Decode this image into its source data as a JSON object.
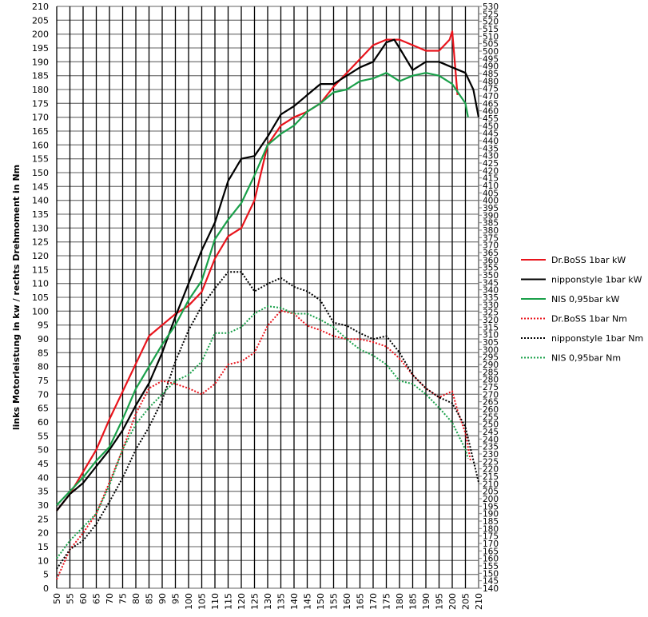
{
  "chart_data": {
    "type": "line",
    "title": "",
    "xlabel": "",
    "ylabel": "links Motorleistung in kw / rechts Drehmoment in Nm",
    "xlim": [
      50,
      210
    ],
    "xstep": 5,
    "ylim_left": [
      0,
      210
    ],
    "ystep_left": 5,
    "ylim_right": [
      140,
      530
    ],
    "ystep_right": 5,
    "grid": true,
    "legend_position": "right",
    "series": [
      {
        "name": "Dr.BoSS 1bar kW",
        "axis": "left",
        "color": "#e8141c",
        "style": "solid",
        "x": [
          50,
          55,
          60,
          65,
          70,
          75,
          80,
          85,
          90,
          95,
          100,
          105,
          110,
          115,
          120,
          125,
          130,
          135,
          140,
          145,
          150,
          155,
          160,
          165,
          170,
          175,
          180,
          185,
          190,
          195,
          199,
          200,
          202
        ],
        "y": [
          28,
          34,
          42,
          50,
          61,
          71,
          81,
          91,
          95,
          99,
          102,
          107,
          119,
          127,
          130,
          140,
          160,
          167,
          170,
          172,
          175,
          181,
          186,
          191,
          196,
          198,
          198,
          196,
          194,
          194,
          198,
          201,
          178
        ]
      },
      {
        "name": "nipponstyle 1bar kW",
        "axis": "left",
        "color": "#000000",
        "style": "solid",
        "x": [
          50,
          55,
          60,
          65,
          70,
          75,
          80,
          85,
          90,
          95,
          100,
          105,
          110,
          115,
          120,
          125,
          130,
          135,
          140,
          145,
          150,
          155,
          160,
          165,
          170,
          175,
          178,
          180,
          185,
          190,
          195,
          200,
          205,
          208,
          210
        ],
        "y": [
          28,
          34,
          38,
          44,
          50,
          57,
          66,
          74,
          85,
          98,
          110,
          122,
          132,
          147,
          155,
          156,
          163,
          171,
          174,
          178,
          182,
          182,
          185,
          188,
          190,
          197,
          198,
          195,
          187,
          190,
          190,
          188,
          186,
          180,
          170
        ]
      },
      {
        "name": "NIS 0,95bar kW",
        "axis": "left",
        "color": "#1aa04a",
        "style": "solid",
        "x": [
          50,
          55,
          60,
          65,
          70,
          75,
          80,
          85,
          90,
          95,
          100,
          105,
          110,
          115,
          120,
          125,
          130,
          135,
          140,
          145,
          150,
          155,
          160,
          165,
          170,
          175,
          180,
          185,
          190,
          195,
          200,
          205,
          206
        ],
        "y": [
          30,
          35,
          40,
          46,
          51,
          61,
          72,
          80,
          88,
          95,
          104,
          111,
          126,
          133,
          139,
          149,
          160,
          164,
          167,
          172,
          175,
          179,
          180,
          183,
          184,
          186,
          183,
          185,
          186,
          185,
          182,
          175,
          170
        ]
      },
      {
        "name": "Dr.BoSS 1bar Nm",
        "axis": "right",
        "color": "#e8141c",
        "style": "dotted",
        "x": [
          50,
          55,
          60,
          65,
          70,
          75,
          80,
          85,
          90,
          95,
          100,
          105,
          110,
          115,
          120,
          125,
          130,
          135,
          140,
          145,
          150,
          155,
          160,
          165,
          170,
          175,
          180,
          185,
          190,
          195,
          200,
          202,
          205,
          207
        ],
        "y": [
          146,
          166,
          177,
          190,
          211,
          233,
          257,
          274,
          279,
          277,
          274,
          270,
          277,
          290,
          292,
          298,
          316,
          326,
          324,
          316,
          313,
          309,
          307,
          307,
          305,
          302,
          294,
          283,
          274,
          268,
          272,
          259,
          244,
          225
        ]
      },
      {
        "name": "nipponstyle 1bar Nm",
        "axis": "right",
        "color": "#000000",
        "style": "dotted",
        "x": [
          50,
          55,
          60,
          65,
          70,
          75,
          80,
          85,
          90,
          95,
          100,
          105,
          110,
          115,
          120,
          125,
          130,
          135,
          140,
          145,
          150,
          155,
          160,
          165,
          170,
          175,
          180,
          185,
          190,
          195,
          200,
          205,
          210
        ],
        "y": [
          153,
          166,
          172,
          183,
          198,
          214,
          233,
          248,
          266,
          292,
          313,
          329,
          341,
          352,
          352,
          339,
          344,
          348,
          342,
          339,
          333,
          318,
          316,
          311,
          307,
          309,
          298,
          283,
          274,
          268,
          264,
          248,
          211
        ]
      },
      {
        "name": "NIS 0,95bar Nm",
        "axis": "right",
        "color": "#1aa04a",
        "style": "dotted",
        "x": [
          50,
          55,
          60,
          65,
          70,
          75,
          80,
          85,
          90,
          95,
          100,
          105,
          110,
          115,
          120,
          125,
          130,
          135,
          140,
          145,
          150,
          155,
          160,
          165,
          170,
          175,
          180,
          185,
          190,
          195,
          200,
          205,
          206
        ],
        "y": [
          160,
          172,
          181,
          190,
          209,
          233,
          250,
          261,
          270,
          279,
          283,
          292,
          311,
          311,
          315,
          324,
          329,
          328,
          324,
          324,
          320,
          315,
          307,
          300,
          296,
          290,
          279,
          277,
          270,
          261,
          251,
          233,
          227
        ]
      }
    ]
  }
}
